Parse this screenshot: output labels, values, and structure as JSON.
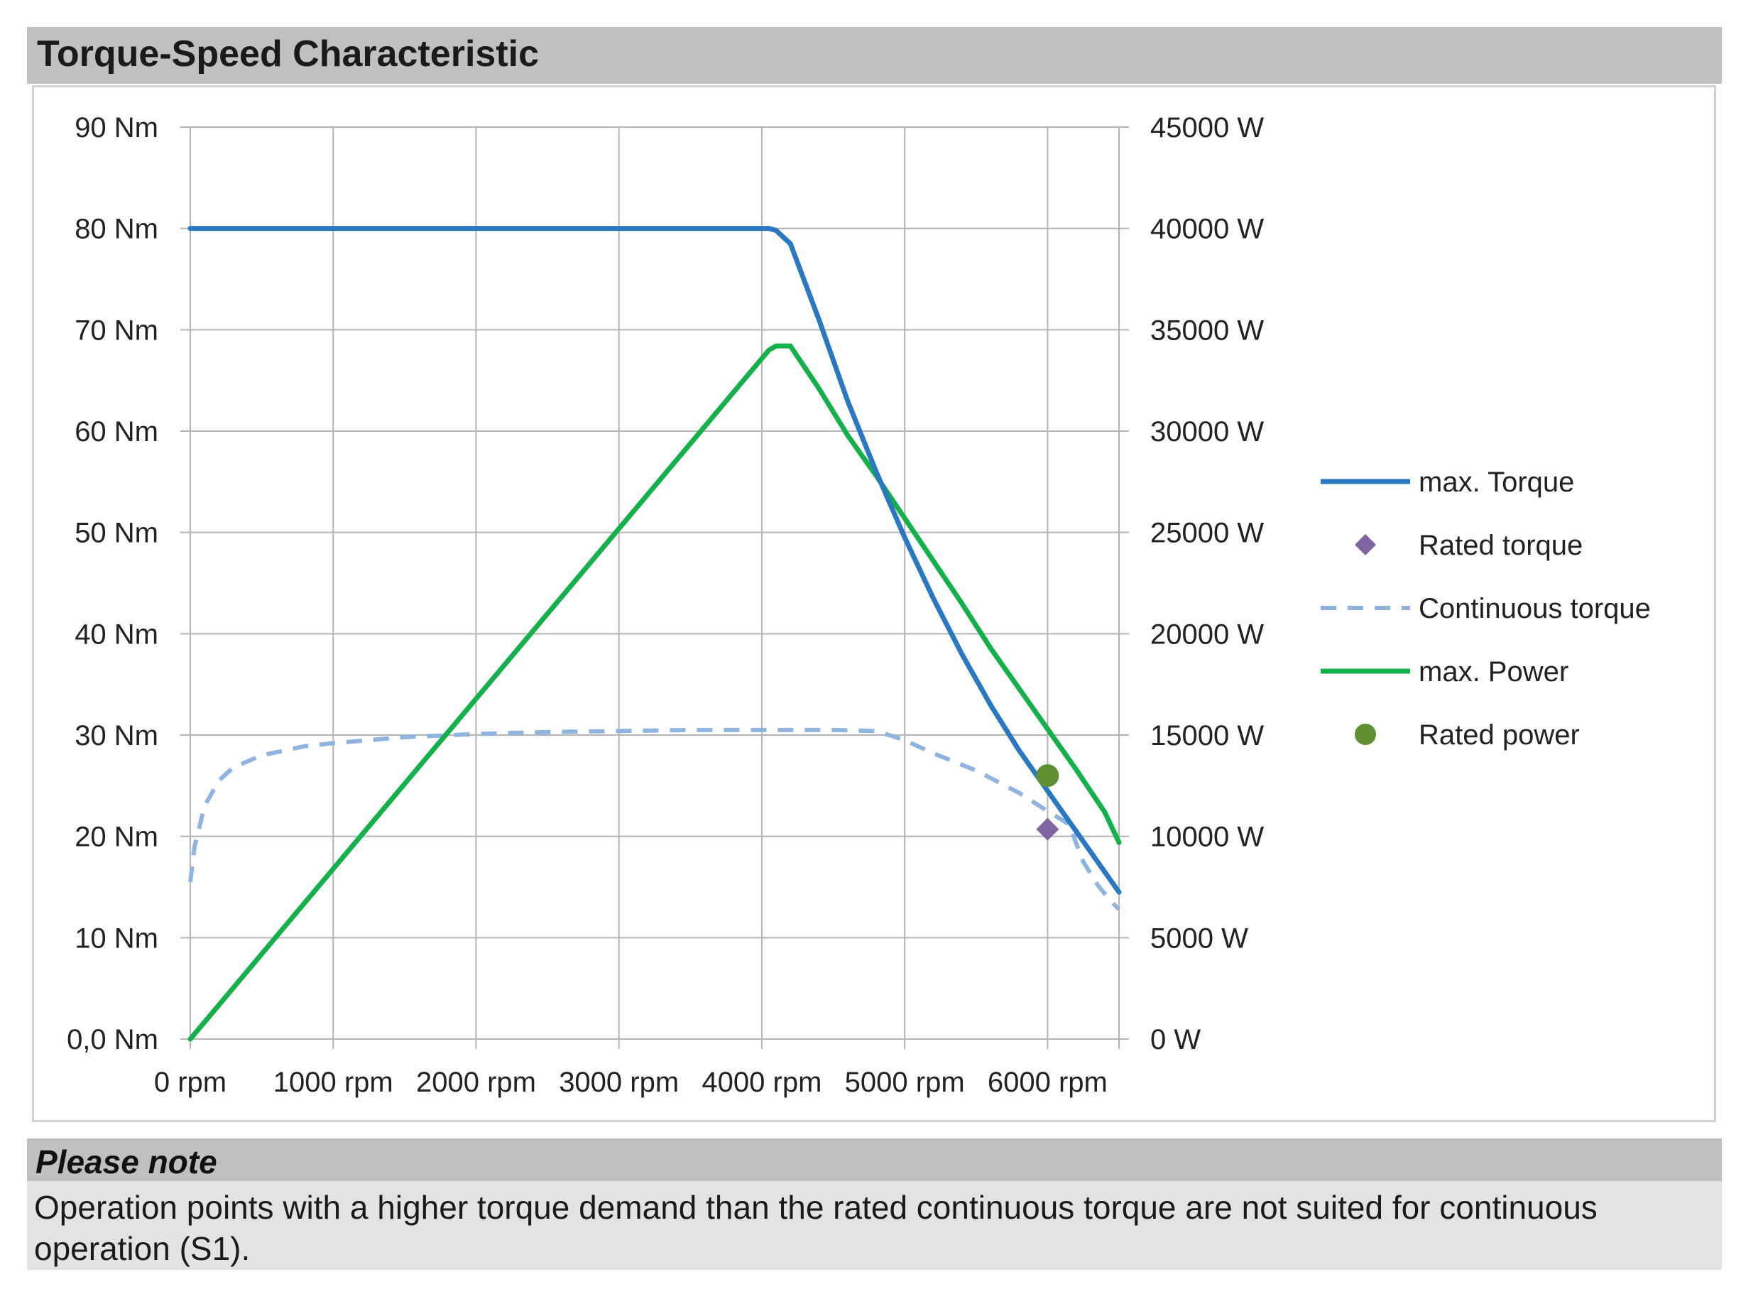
{
  "title": "Torque-Speed Characteristic",
  "note": {
    "heading": "Please note",
    "text": "Operation points with a higher torque demand than the rated continuous torque are not suited for continuous operation (S1)."
  },
  "chart_data": {
    "type": "line",
    "x_ticks": [
      "0 rpm",
      "1000 rpm",
      "2000 rpm",
      "3000 rpm",
      "4000 rpm",
      "5000 rpm",
      "6000 rpm"
    ],
    "xlim": [
      0,
      6500
    ],
    "y_left_ticks": [
      "0,0 Nm",
      "10 Nm",
      "20 Nm",
      "30 Nm",
      "40 Nm",
      "50 Nm",
      "60 Nm",
      "70 Nm",
      "80 Nm",
      "90 Nm"
    ],
    "ylim_left": [
      0,
      90
    ],
    "y_right_ticks": [
      "0 W",
      "5000 W",
      "10000 W",
      "15000 W",
      "20000 W",
      "25000 W",
      "30000 W",
      "35000 W",
      "40000 W",
      "45000 W"
    ],
    "ylim_right": [
      0,
      45000
    ],
    "grid": true,
    "legend_position": "right",
    "series": [
      {
        "name": "max. Torque",
        "axis": "left",
        "style": "solid",
        "color": "#2a78c2",
        "marker": "none",
        "x": [
          0,
          4050,
          4100,
          4200,
          4400,
          4600,
          4800,
          5000,
          5200,
          5400,
          5600,
          5800,
          6000,
          6200,
          6400,
          6500
        ],
        "y": [
          80,
          80,
          79.8,
          78.5,
          71,
          63,
          56,
          49.5,
          43.5,
          38,
          33,
          28.5,
          24.5,
          20.5,
          16.5,
          14.5
        ]
      },
      {
        "name": "Rated torque",
        "axis": "left",
        "style": "marker",
        "color": "#8064a2",
        "marker": "diamond",
        "x": [
          6000
        ],
        "y": [
          20.7
        ]
      },
      {
        "name": "Continuous torque",
        "axis": "left",
        "style": "dashed",
        "color": "#8fb4e0",
        "marker": "none",
        "x": [
          0,
          30,
          100,
          200,
          300,
          500,
          800,
          1000,
          1500,
          2000,
          2500,
          3000,
          3500,
          4000,
          4500,
          4800,
          5000,
          5200,
          5500,
          5800,
          6000,
          6150,
          6250,
          6350,
          6450,
          6500
        ],
        "y": [
          15.5,
          19,
          23,
          25.5,
          26.8,
          28,
          28.9,
          29.2,
          29.8,
          30.1,
          30.3,
          30.4,
          30.5,
          30.5,
          30.5,
          30.4,
          29.5,
          28.2,
          26.5,
          24.3,
          22.5,
          21.2,
          17.5,
          15.2,
          13.5,
          12.8
        ]
      },
      {
        "name": "max. Power",
        "axis": "right",
        "style": "solid",
        "color": "#14b14b",
        "marker": "none",
        "x": [
          0,
          4050,
          4100,
          4200,
          4400,
          4600,
          4800,
          5000,
          5200,
          5400,
          5600,
          5800,
          6000,
          6200,
          6400,
          6500
        ],
        "y": [
          0,
          34000,
          34200,
          34200,
          32100,
          29800,
          27800,
          25700,
          23600,
          21500,
          19300,
          17300,
          15300,
          13300,
          11200,
          9700
        ]
      },
      {
        "name": "Rated power",
        "axis": "right",
        "style": "marker",
        "color": "#5f8f30",
        "marker": "circle",
        "x": [
          6000
        ],
        "y": [
          13000
        ]
      }
    ]
  }
}
